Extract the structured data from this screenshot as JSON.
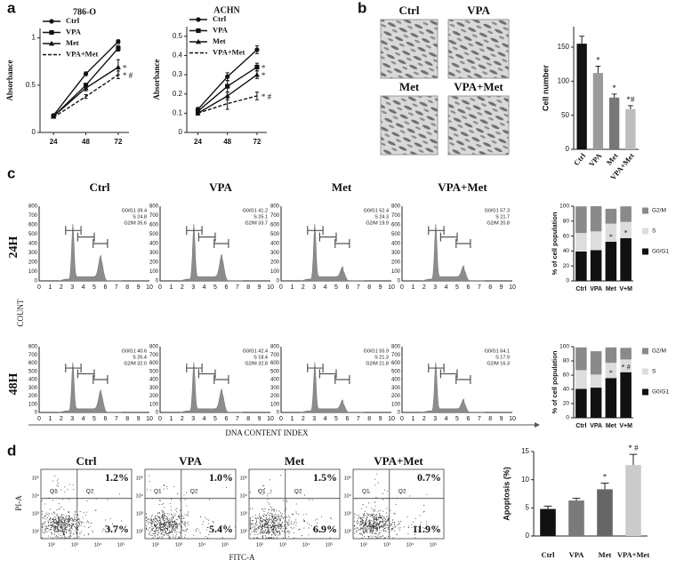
{
  "panel_labels": [
    "a",
    "b",
    "c",
    "d"
  ],
  "chart_data": [
    {
      "type": "line",
      "title": "786-O",
      "y_label": "Absorbance",
      "x": [
        24,
        48,
        72
      ],
      "xlim": [
        14,
        80
      ],
      "xticks": [
        24,
        48,
        72
      ],
      "ylim": [
        0,
        1.1
      ],
      "yticks": [
        0,
        0.5,
        1
      ],
      "series": [
        {
          "name": "Ctrl",
          "color": "#111111",
          "marker": "circle",
          "dash": false,
          "values": [
            0.18,
            0.62,
            0.96
          ],
          "errors": [
            0.01,
            0.02,
            0.02
          ]
        },
        {
          "name": "VPA",
          "color": "#111111",
          "marker": "square",
          "dash": false,
          "values": [
            0.17,
            0.5,
            0.89
          ],
          "errors": [
            0.01,
            0.02,
            0.03
          ]
        },
        {
          "name": "Met",
          "color": "#111111",
          "marker": "triangle",
          "dash": false,
          "values": [
            0.17,
            0.47,
            0.69
          ],
          "errors": [
            0.01,
            0.03,
            0.08
          ],
          "annotation": "*"
        },
        {
          "name": "VPA+Met",
          "color": "#111111",
          "marker": "none",
          "dash": true,
          "values": [
            0.16,
            0.38,
            0.61
          ],
          "errors": [
            0.01,
            0.02,
            0.04
          ],
          "annotation": "* #"
        }
      ]
    },
    {
      "type": "line",
      "title": "ACHN",
      "y_label": "Absorbance",
      "x": [
        24,
        48,
        72
      ],
      "xlim": [
        15,
        80
      ],
      "xticks": [
        24,
        48,
        72
      ],
      "ylim": [
        0,
        0.55
      ],
      "yticks": [
        0,
        0.1,
        0.2,
        0.3,
        0.4,
        0.5
      ],
      "series": [
        {
          "name": "Ctrl",
          "color": "#111111",
          "marker": "circle",
          "dash": false,
          "values": [
            0.12,
            0.29,
            0.43
          ],
          "errors": [
            0.01,
            0.02,
            0.02
          ]
        },
        {
          "name": "VPA",
          "color": "#111111",
          "marker": "square",
          "dash": false,
          "values": [
            0.11,
            0.24,
            0.34
          ],
          "errors": [
            0.01,
            0.03,
            0.02
          ],
          "annotation": "*"
        },
        {
          "name": "Met",
          "color": "#111111",
          "marker": "triangle",
          "dash": false,
          "values": [
            0.1,
            0.19,
            0.3
          ],
          "errors": [
            0.01,
            0.02,
            0.02
          ],
          "annotation": "*"
        },
        {
          "name": "VPA+Met",
          "color": "#111111",
          "marker": "none",
          "dash": true,
          "values": [
            0.1,
            0.15,
            0.19
          ],
          "errors": [
            0.01,
            0.03,
            0.02
          ],
          "annotation": "* #"
        }
      ]
    },
    {
      "type": "bar",
      "y_label": "Cell number",
      "categories": [
        "Ctrl",
        "VPA",
        "Met",
        "VPA+Met"
      ],
      "values": [
        155,
        112,
        76,
        59
      ],
      "errors": [
        11,
        10,
        5,
        5
      ],
      "colors": [
        "#111111",
        "#9a9a9a",
        "#777777",
        "#bdbdbd"
      ],
      "annotations": [
        null,
        "*",
        "*",
        "*#"
      ],
      "ylim": [
        0,
        180
      ],
      "yticks": [
        0,
        50,
        100,
        150
      ]
    },
    {
      "type": "stacked_bar",
      "y_label": "% of cell population",
      "categories": [
        "Ctrl",
        "VPA",
        "Met",
        "V+M"
      ],
      "series": [
        {
          "name": "G0/G1",
          "color": "#111111",
          "values": [
            39.4,
            41.2,
            52.4,
            57.3
          ]
        },
        {
          "name": "S",
          "color": "#dddddd",
          "values": [
            24.8,
            25.1,
            24.3,
            21.7
          ]
        },
        {
          "name": "G2/M",
          "color": "#8a8a8a",
          "values": [
            35.6,
            33.7,
            19.9,
            20.8
          ]
        }
      ],
      "annotations": [
        null,
        null,
        "*",
        "*"
      ],
      "ylim": [
        0,
        100
      ],
      "yticks": [
        0,
        20,
        40,
        60,
        80,
        100
      ]
    },
    {
      "type": "stacked_bar",
      "y_label": "% of cell population",
      "categories": [
        "Ctrl",
        "VPA",
        "Met",
        "V+M"
      ],
      "series": [
        {
          "name": "G0/G1",
          "color": "#111111",
          "values": [
            40.6,
            42.4,
            55.9,
            64.1
          ]
        },
        {
          "name": "S",
          "color": "#dddddd",
          "values": [
            26.4,
            18.4,
            21.3,
            17.9
          ]
        },
        {
          "name": "G2/M",
          "color": "#8a8a8a",
          "values": [
            32,
            32.8,
            21.8,
            16.3
          ]
        }
      ],
      "annotations": [
        null,
        null,
        "*",
        "* #"
      ],
      "ylim": [
        0,
        100
      ],
      "yticks": [
        0,
        20,
        40,
        60,
        80,
        100
      ]
    },
    {
      "type": "bar",
      "y_label": "Apoptosis (%)",
      "categories": [
        "Ctrl",
        "VPA",
        "Met",
        "VPA+Met"
      ],
      "values": [
        4.8,
        6.3,
        8.3,
        12.6
      ],
      "errors": [
        0.5,
        0.4,
        1.1,
        1.9
      ],
      "colors": [
        "#111111",
        "#7a7a7a",
        "#666666",
        "#cccccc"
      ],
      "annotations": [
        null,
        null,
        "*",
        "* #"
      ],
      "ylim": [
        0,
        15
      ],
      "yticks": [
        0,
        5,
        10,
        15
      ]
    }
  ],
  "micrographs": {
    "labels": [
      "Ctrl",
      "VPA",
      "Met",
      "VPA+Met"
    ]
  },
  "cell_cycle": {
    "columns": [
      "Ctrl",
      "VPA",
      "Met",
      "VPA+Met"
    ],
    "rows": [
      "24H",
      "48H"
    ],
    "y_label": "COUNT",
    "x_label": "DNA CONTENT INDEX",
    "x_ticks": [
      "0",
      "1",
      "2",
      "3",
      "4",
      "5",
      "6",
      "7",
      "8",
      "9",
      "10"
    ],
    "y_ticks": [
      "0",
      "100",
      "200",
      "300",
      "400",
      "500",
      "600",
      "700",
      "800"
    ],
    "gates": [
      [
        [
          "G0/G1 39.4",
          "S 24.8",
          "G2/M 35.6"
        ],
        [
          "G0/G1 41.2",
          "S 25.1",
          "G2/M 33.7"
        ],
        [
          "G0/G1 52.4",
          "S 24.3",
          "G2/M 19.9"
        ],
        [
          "G0/G1 57.3",
          "S 21.7",
          "G2/M 20.8"
        ]
      ],
      [
        [
          "G0/G1 40.6",
          "S 26.4",
          "G2/M 32.0"
        ],
        [
          "G0/G1 42.4",
          "S 18.4",
          "G2/M 32.8"
        ],
        [
          "G0/G1 55.9",
          "S 21.3",
          "G2/M 21.8"
        ],
        [
          "G0/G1 64.1",
          "S 17.9",
          "G2/M 16.3"
        ]
      ]
    ]
  },
  "apoptosis_plots": {
    "columns": [
      "Ctrl",
      "VPA",
      "Met",
      "VPA+Met"
    ],
    "y_label": "PI-A",
    "x_label": "FITC-A",
    "quadrants": [
      "Q1",
      "Q2"
    ],
    "axis_ticks": [
      "10²",
      "10³",
      "10⁴",
      "10⁵"
    ],
    "percentages": [
      [
        "1.2%",
        "3.7%"
      ],
      [
        "1.0%",
        "5.4%"
      ],
      [
        "1.5%",
        "6.9%"
      ],
      [
        "0.7%",
        "11.9%"
      ]
    ]
  }
}
